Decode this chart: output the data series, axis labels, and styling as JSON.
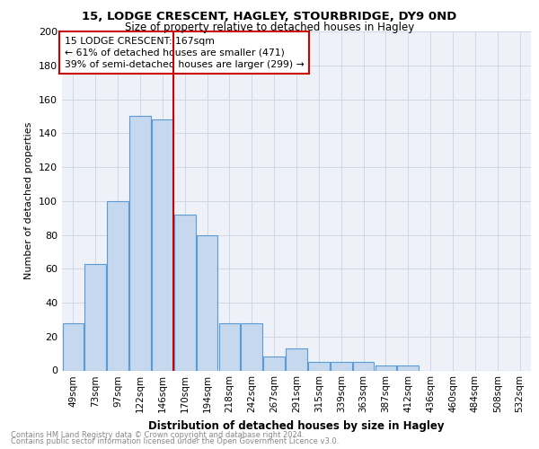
{
  "title1": "15, LODGE CRESCENT, HAGLEY, STOURBRIDGE, DY9 0ND",
  "title2": "Size of property relative to detached houses in Hagley",
  "xlabel": "Distribution of detached houses by size in Hagley",
  "ylabel": "Number of detached properties",
  "categories": [
    "49sqm",
    "73sqm",
    "97sqm",
    "122sqm",
    "146sqm",
    "170sqm",
    "194sqm",
    "218sqm",
    "242sqm",
    "267sqm",
    "291sqm",
    "315sqm",
    "339sqm",
    "363sqm",
    "387sqm",
    "412sqm",
    "436sqm",
    "460sqm",
    "484sqm",
    "508sqm",
    "532sqm"
  ],
  "values": [
    28,
    63,
    100,
    150,
    148,
    92,
    80,
    28,
    28,
    8,
    13,
    5,
    5,
    5,
    3,
    3,
    0,
    0,
    0,
    0,
    0
  ],
  "bar_color": "#c5d8ed",
  "bar_edge_color": "#5b9bd5",
  "property_line_index": 4,
  "property_line_color": "#cc0000",
  "annotation_box_color": "#cc0000",
  "annotation_line1": "15 LODGE CRESCENT: 167sqm",
  "annotation_line2": "← 61% of detached houses are smaller (471)",
  "annotation_line3": "39% of semi-detached houses are larger (299) →",
  "grid_color": "#d0d8e8",
  "background_color": "#eef2f8",
  "ylim": [
    0,
    200
  ],
  "yticks": [
    0,
    20,
    40,
    60,
    80,
    100,
    120,
    140,
    160,
    180,
    200
  ],
  "footer1": "Contains HM Land Registry data © Crown copyright and database right 2024.",
  "footer2": "Contains public sector information licensed under the Open Government Licence v3.0."
}
